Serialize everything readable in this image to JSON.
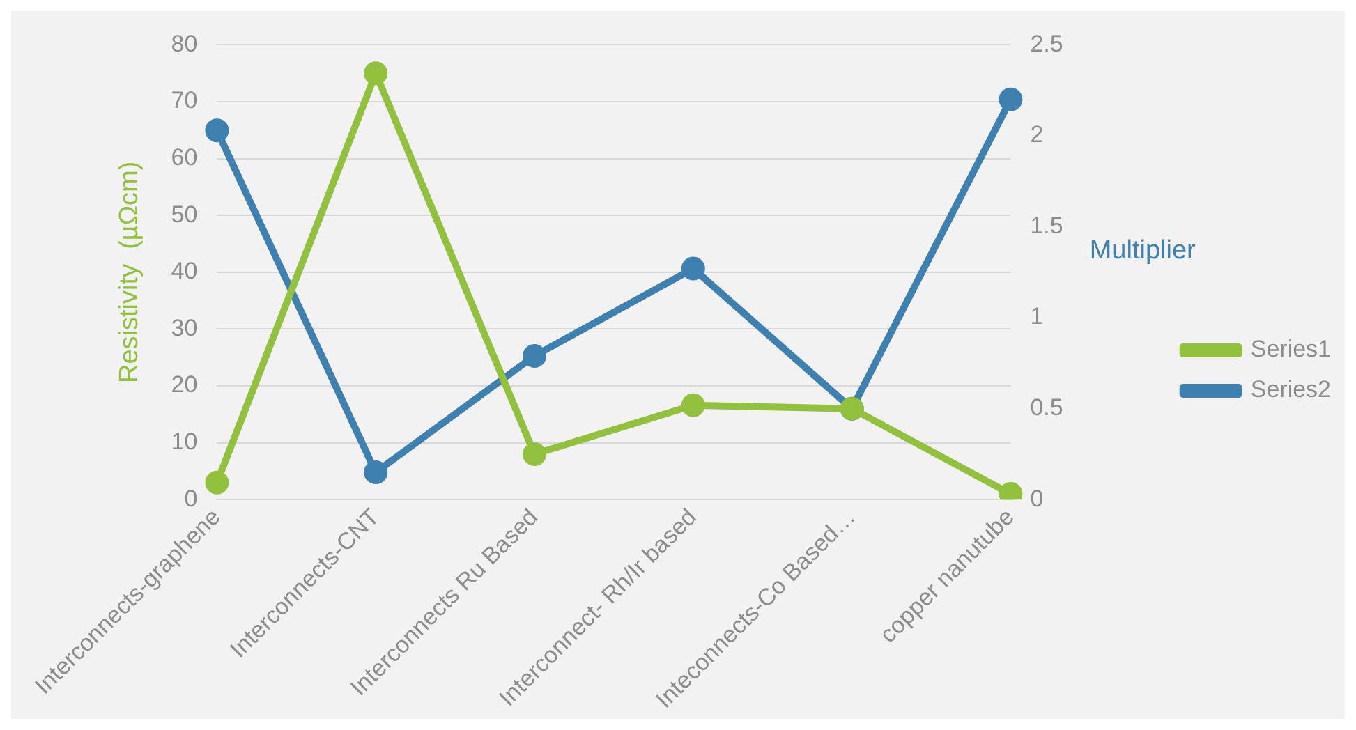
{
  "chart_data": {
    "type": "line",
    "categories": [
      "Interconnects-graphene",
      "Interconnects-CNT",
      "Interconnects Ru Based",
      "Interconnect- Rh/Ir based",
      "Inteconnects-Co Based…",
      "copper nanutube"
    ],
    "series": [
      {
        "name": "Series1",
        "color": "#92c13e",
        "values": [
          3,
          75,
          8,
          16.6,
          16,
          1
        ]
      },
      {
        "name": "Series2",
        "color": "#3e81b0",
        "axis": "y2",
        "values": [
          2.03,
          0.15,
          0.79,
          1.27,
          0.5,
          2.2
        ]
      }
    ],
    "ylabel": "Resistivity  (µΩcm)",
    "y2label": "Multiplier",
    "ylim": [
      0,
      80
    ],
    "yticks": [
      0,
      10,
      20,
      30,
      40,
      50,
      60,
      70,
      80
    ],
    "y2lim": [
      0,
      2.5
    ],
    "y2ticks": [
      0,
      0.5,
      1,
      1.5,
      2,
      2.5
    ],
    "grid": "y",
    "legend": "right",
    "marker": "circle",
    "line_style": "solid"
  }
}
